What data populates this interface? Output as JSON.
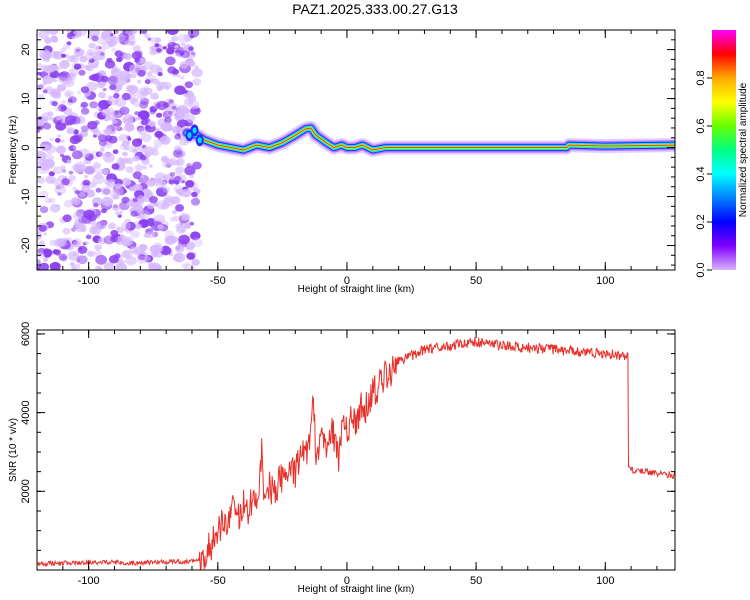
{
  "title": "PAZ1.2025.333.00.27.G13",
  "colors": {
    "snr_line": "#e8302a",
    "noise_speckle": "#8a3ff0",
    "noise_speckle_light": "#d6b8ff",
    "background": "#ffffff"
  },
  "chart_data": [
    {
      "type": "heatmap",
      "xlabel": "Height of straight line (km)",
      "ylabel": "Frequency (Hz)",
      "xlim": [
        -120,
        127
      ],
      "ylim": [
        -25,
        24
      ],
      "xticks": [
        -100,
        -50,
        0,
        50,
        100
      ],
      "xtick_labels": [
        "-100",
        "-50",
        "0",
        "50",
        "100"
      ],
      "yticks": [
        -20,
        -10,
        0,
        10,
        20
      ],
      "ytick_labels": [
        "-20",
        "-10",
        "0",
        "10",
        "20"
      ],
      "noise_region_x": [
        -120,
        -58
      ],
      "ridge": {
        "x": [
          -62,
          -58,
          -55,
          -50,
          -45,
          -40,
          -35,
          -30,
          -25,
          -20,
          -16,
          -14,
          -12,
          -8,
          -5,
          -2,
          0,
          3,
          6,
          10,
          15,
          50,
          85,
          86,
          100,
          127
        ],
        "freq": [
          3,
          2.5,
          1.5,
          0.5,
          0,
          -0.5,
          0.5,
          0,
          1,
          2.5,
          3.8,
          4,
          2.5,
          1,
          0,
          0.5,
          0,
          0,
          0.5,
          -0.5,
          0,
          0,
          0,
          0.5,
          0.3,
          0.5
        ]
      }
    },
    {
      "type": "line",
      "series_name": "SNR",
      "xlabel": "Height of straight line (km)",
      "ylabel": "SNR (10 * v/v)",
      "xlim": [
        -120,
        127
      ],
      "ylim": [
        0,
        6100
      ],
      "xticks": [
        -100,
        -50,
        0,
        50,
        100
      ],
      "xtick_labels": [
        "-100",
        "-50",
        "0",
        "50",
        "100"
      ],
      "yticks": [
        2000,
        4000,
        6000
      ],
      "ytick_labels": [
        "2000",
        "4000",
        "6000"
      ],
      "x": [
        -120,
        -100,
        -80,
        -60,
        -57,
        -55,
        -52,
        -50,
        -48,
        -46,
        -44,
        -42,
        -40,
        -38,
        -36,
        -34,
        -33,
        -32,
        -30,
        -28,
        -26,
        -24,
        -22,
        -20,
        -18,
        -16,
        -14,
        -13,
        -12,
        -10,
        -8,
        -6,
        -4,
        -3,
        -2,
        0,
        2,
        4,
        6,
        8,
        10,
        12,
        14,
        16,
        18,
        20,
        25,
        30,
        35,
        40,
        45,
        50,
        55,
        60,
        70,
        80,
        90,
        100,
        108,
        109,
        110,
        115,
        120,
        127
      ],
      "values": [
        150,
        200,
        180,
        220,
        280,
        450,
        700,
        900,
        1400,
        1200,
        1600,
        1300,
        1700,
        1500,
        1900,
        1800,
        3000,
        1700,
        2100,
        1900,
        2400,
        2200,
        2700,
        2500,
        3000,
        2800,
        3500,
        4200,
        3000,
        3300,
        3100,
        3600,
        3200,
        2800,
        3700,
        3600,
        3900,
        3800,
        4200,
        4100,
        4500,
        4600,
        4900,
        5000,
        5100,
        5300,
        5450,
        5600,
        5650,
        5700,
        5750,
        5800,
        5750,
        5700,
        5650,
        5600,
        5550,
        5500,
        5450,
        2600,
        2550,
        2500,
        2450,
        2400
      ]
    }
  ],
  "colorbar": {
    "label": "Normalized spectral amplitude",
    "ticks": [
      0.0,
      0.2,
      0.4,
      0.6,
      0.8
    ],
    "tick_labels": [
      "0.0",
      "0.2",
      "0.4",
      "0.6",
      "0.8"
    ],
    "gradient_stops": [
      "#ff00ff",
      "#ff0000",
      "#ffaa00",
      "#ffff00",
      "#66ff00",
      "#00ff80",
      "#00ffff",
      "#0080ff",
      "#0000ff",
      "#8000ff",
      "#d9b3ff"
    ]
  }
}
